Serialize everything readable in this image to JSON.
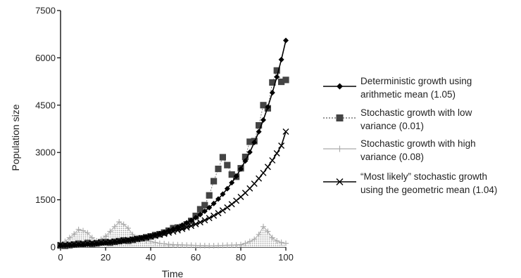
{
  "chart_data": {
    "type": "line",
    "title": "",
    "xlabel": "Time",
    "ylabel": "Population size",
    "xlim": [
      0,
      100
    ],
    "ylim": [
      0,
      7500
    ],
    "xticks": [
      "0",
      "20",
      "40",
      "60",
      "80",
      "100"
    ],
    "yticks": [
      "0",
      "1500",
      "3000",
      "4500",
      "6000",
      "7500"
    ],
    "grid": false,
    "legend_position": "right",
    "series": [
      {
        "name": "Deterministic growth using arithmetic mean (1.05)",
        "legend_lines": [
          "Deterministic growth using",
          "arithmetic mean (1.05)"
        ],
        "marker": "diamond",
        "line_style": "solid",
        "color": "#000000",
        "x": [
          0,
          2,
          4,
          6,
          8,
          10,
          12,
          14,
          16,
          18,
          20,
          22,
          24,
          26,
          28,
          30,
          32,
          34,
          36,
          38,
          40,
          42,
          44,
          46,
          48,
          50,
          52,
          54,
          56,
          58,
          60,
          62,
          64,
          66,
          68,
          70,
          72,
          74,
          76,
          78,
          80,
          82,
          84,
          86,
          88,
          90,
          92,
          94,
          96,
          98,
          100
        ],
        "values": [
          50,
          55,
          61,
          67,
          74,
          81,
          90,
          99,
          109,
          120,
          133,
          147,
          162,
          178,
          197,
          217,
          239,
          264,
          291,
          321,
          352,
          389,
          429,
          473,
          522,
          573,
          633,
          698,
          770,
          849,
          934,
          1031,
          1137,
          1253,
          1382,
          1524,
          1680,
          1852,
          2041,
          2249,
          2477,
          2731,
          3010,
          3318,
          3657,
          4031,
          4442,
          4895,
          5394,
          5944,
          6550
        ]
      },
      {
        "name": "Stochastic growth with low variance (0.01)",
        "legend_lines": [
          "Stochastic growth with low",
          "variance (0.01)"
        ],
        "marker": "square",
        "line_style": "dotted",
        "color": "#777777",
        "x": [
          0,
          2,
          4,
          6,
          8,
          10,
          12,
          14,
          16,
          18,
          20,
          22,
          24,
          26,
          28,
          30,
          32,
          34,
          36,
          38,
          40,
          42,
          44,
          46,
          48,
          50,
          52,
          54,
          56,
          58,
          60,
          62,
          64,
          66,
          68,
          70,
          72,
          74,
          76,
          78,
          80,
          82,
          84,
          86,
          88,
          90,
          92,
          94,
          96,
          98,
          100
        ],
        "values": [
          50,
          40,
          60,
          80,
          110,
          90,
          130,
          100,
          120,
          150,
          160,
          140,
          170,
          190,
          210,
          200,
          230,
          260,
          280,
          310,
          340,
          380,
          410,
          460,
          520,
          600,
          620,
          640,
          720,
          830,
          990,
          1200,
          1330,
          1640,
          2090,
          2480,
          2850,
          2600,
          2300,
          2230,
          2500,
          2860,
          3340,
          3360,
          3860,
          4500,
          4400,
          5220,
          5600,
          5240,
          5300
        ]
      },
      {
        "name": "Stochastic growth with high variance (0.08)",
        "legend_lines": [
          "Stochastic growth with high",
          "variance (0.08)"
        ],
        "marker": "plus",
        "line_style": "solid",
        "color": "#aaaaaa",
        "x": [
          0,
          2,
          4,
          6,
          8,
          10,
          12,
          14,
          16,
          18,
          20,
          22,
          24,
          26,
          28,
          30,
          32,
          34,
          36,
          38,
          40,
          42,
          44,
          46,
          48,
          50,
          52,
          54,
          56,
          58,
          60,
          62,
          64,
          66,
          68,
          70,
          72,
          74,
          76,
          78,
          80,
          82,
          84,
          86,
          88,
          90,
          92,
          94,
          96,
          98,
          100
        ],
        "values": [
          50,
          180,
          300,
          420,
          560,
          520,
          450,
          300,
          200,
          250,
          350,
          500,
          650,
          800,
          720,
          600,
          400,
          300,
          250,
          200,
          180,
          150,
          120,
          110,
          90,
          80,
          75,
          70,
          65,
          60,
          55,
          50,
          48,
          45,
          45,
          50,
          55,
          60,
          65,
          70,
          80,
          120,
          180,
          250,
          400,
          650,
          500,
          300,
          200,
          150,
          120
        ]
      },
      {
        "name": "“Most likely” stochastic growth using the geometric mean (1.04)",
        "legend_lines": [
          "“Most likely” stochastic growth",
          "using the geometric mean (1.04)"
        ],
        "marker": "x",
        "line_style": "solid",
        "color": "#000000",
        "x": [
          0,
          2,
          4,
          6,
          8,
          10,
          12,
          14,
          16,
          18,
          20,
          22,
          24,
          26,
          28,
          30,
          32,
          34,
          36,
          38,
          40,
          42,
          44,
          46,
          48,
          50,
          52,
          54,
          56,
          58,
          60,
          62,
          64,
          66,
          68,
          70,
          72,
          74,
          76,
          78,
          80,
          82,
          84,
          86,
          88,
          90,
          92,
          94,
          96,
          98,
          100
        ],
        "values": [
          70,
          76,
          82,
          89,
          96,
          104,
          112,
          121,
          131,
          141,
          153,
          165,
          179,
          193,
          209,
          226,
          244,
          264,
          285,
          308,
          333,
          360,
          390,
          421,
          455,
          492,
          532,
          575,
          622,
          673,
          728,
          787,
          851,
          920,
          995,
          1076,
          1164,
          1258,
          1361,
          1471,
          1591,
          1720,
          1860,
          2011,
          2175,
          2352,
          2543,
          2750,
          2973,
          3215,
          3660
        ]
      }
    ]
  }
}
